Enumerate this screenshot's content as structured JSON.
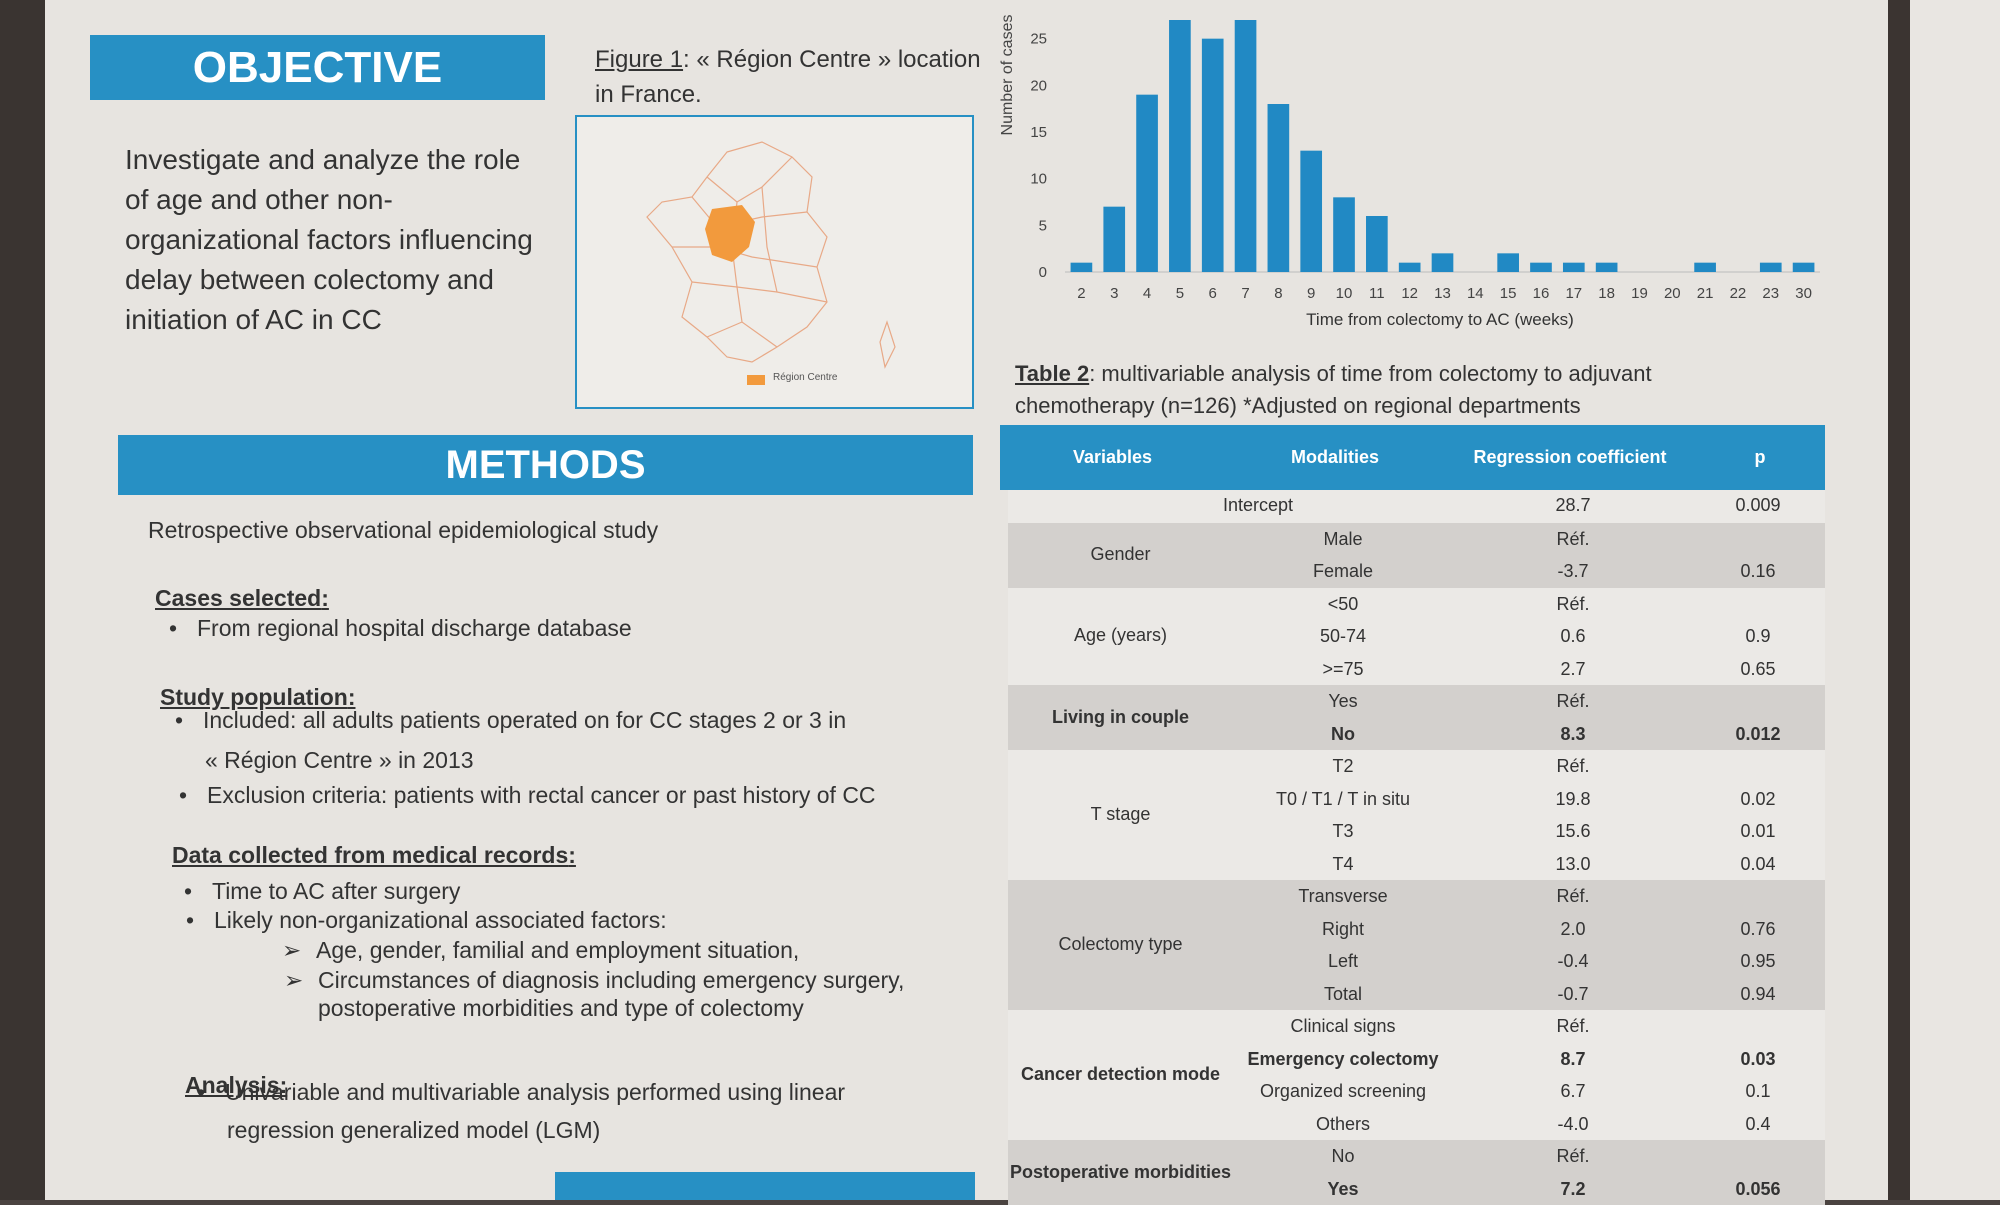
{
  "objective": {
    "title": "OBJECTIVE",
    "text": "Investigate and analyze the role of age and other non-organizational factors influencing delay between colectomy and initiation of AC in CC"
  },
  "figure1": {
    "label": "Figure 1",
    "caption": ": « Région Centre » location in France.",
    "legend": "Région Centre",
    "highlight_color": "#f29a3d"
  },
  "methods": {
    "title": "METHODS",
    "intro": "Retrospective observational epidemiological study",
    "cases_title": "Cases selected",
    "cases_item": "From regional hospital discharge database",
    "pop_title": "Study population",
    "pop_item1_a": "Included: all adults patients operated on for CC stages 2 or 3 in",
    "pop_item1_b": "« Région Centre » in 2013",
    "pop_item2": "Exclusion criteria: patients with rectal cancer or past history of CC",
    "data_title": "Data collected from medical records",
    "data_item1": "Time to AC after surgery",
    "data_item2": "Likely non-organizational associated factors:",
    "data_sub1": "Age, gender, familial and employment situation,",
    "data_sub2_a": "Circumstances of diagnosis including emergency surgery,",
    "data_sub2_b": "postoperative morbidities and type of colectomy",
    "analysis_title": "Analysis",
    "analysis_item_a": "Univariable and multivariable analysis performed using linear",
    "analysis_item_b": "regression generalized model (LGM)"
  },
  "chart_data": {
    "type": "bar",
    "categories": [
      "2",
      "3",
      "4",
      "5",
      "6",
      "7",
      "8",
      "9",
      "10",
      "11",
      "12",
      "13",
      "14",
      "15",
      "16",
      "17",
      "18",
      "19",
      "20",
      "21",
      "22",
      "23",
      "30"
    ],
    "values": [
      1,
      7,
      19,
      27,
      25,
      27,
      18,
      13,
      8,
      6,
      1,
      2,
      0,
      2,
      1,
      1,
      1,
      0,
      0,
      1,
      0,
      1,
      1
    ],
    "xlabel": "Time from colectomy to AC (weeks)",
    "ylabel": "Number of cases",
    "yticks": [
      0,
      5,
      10,
      15,
      20,
      25
    ],
    "ylim": [
      0,
      27
    ],
    "color": "#2189c4"
  },
  "table2": {
    "label": "Table 2",
    "caption_a": ": multivariable analysis of time from colectomy to adjuvant",
    "caption_b": "chemotherapy (n=126) *Adjusted on regional departments",
    "headers": [
      "Variables",
      "Modalities",
      "Regression coefficient",
      "p"
    ],
    "intercept": {
      "label": "Intercept",
      "coef": "28.7",
      "p": "0.009"
    },
    "groups": [
      {
        "variable": "Gender",
        "bold": false,
        "rows": [
          {
            "mod": "Male",
            "coef": "Réf.",
            "p": ""
          },
          {
            "mod": "Female",
            "coef": "-3.7",
            "p": "0.16"
          }
        ]
      },
      {
        "variable": "Age (years)",
        "bold": false,
        "rows": [
          {
            "mod": "<50",
            "coef": "Réf.",
            "p": ""
          },
          {
            "mod": "50-74",
            "coef": "0.6",
            "p": "0.9"
          },
          {
            "mod": ">=75",
            "coef": "2.7",
            "p": "0.65"
          }
        ]
      },
      {
        "variable": "Living in couple",
        "bold": true,
        "rows": [
          {
            "mod": "Yes",
            "coef": "Réf.",
            "p": ""
          },
          {
            "mod": "No",
            "coef": "8.3",
            "p": "0.012",
            "bold": true
          }
        ]
      },
      {
        "variable": "T stage",
        "bold": false,
        "rows": [
          {
            "mod": "T2",
            "coef": "Réf.",
            "p": ""
          },
          {
            "mod": "T0 / T1 / T in situ",
            "coef": "19.8",
            "p": "0.02"
          },
          {
            "mod": "T3",
            "coef": "15.6",
            "p": "0.01"
          },
          {
            "mod": "T4",
            "coef": "13.0",
            "p": "0.04"
          }
        ]
      },
      {
        "variable": "Colectomy type",
        "bold": false,
        "rows": [
          {
            "mod": "Transverse",
            "coef": "Réf.",
            "p": ""
          },
          {
            "mod": "Right",
            "coef": "2.0",
            "p": "0.76"
          },
          {
            "mod": "Left",
            "coef": "-0.4",
            "p": "0.95"
          },
          {
            "mod": "Total",
            "coef": "-0.7",
            "p": "0.94"
          }
        ]
      },
      {
        "variable": "Cancer detection mode",
        "bold": true,
        "rows": [
          {
            "mod": "Clinical signs",
            "coef": "Réf.",
            "p": ""
          },
          {
            "mod": "Emergency colectomy",
            "coef": "8.7",
            "p": "0.03",
            "bold": true
          },
          {
            "mod": "Organized screening",
            "coef": "6.7",
            "p": "0.1"
          },
          {
            "mod": "Others",
            "coef": "-4.0",
            "p": "0.4"
          }
        ]
      },
      {
        "variable": "Postoperative morbidities",
        "bold": true,
        "rows": [
          {
            "mod": "No",
            "coef": "Réf.",
            "p": ""
          },
          {
            "mod": "Yes",
            "coef": "7.2",
            "p": "0.056",
            "bold": true
          }
        ]
      }
    ]
  },
  "colors": {
    "accent": "#2790c4",
    "band_dark": "#d3d0cd",
    "band_light": "#ebe9e6"
  }
}
